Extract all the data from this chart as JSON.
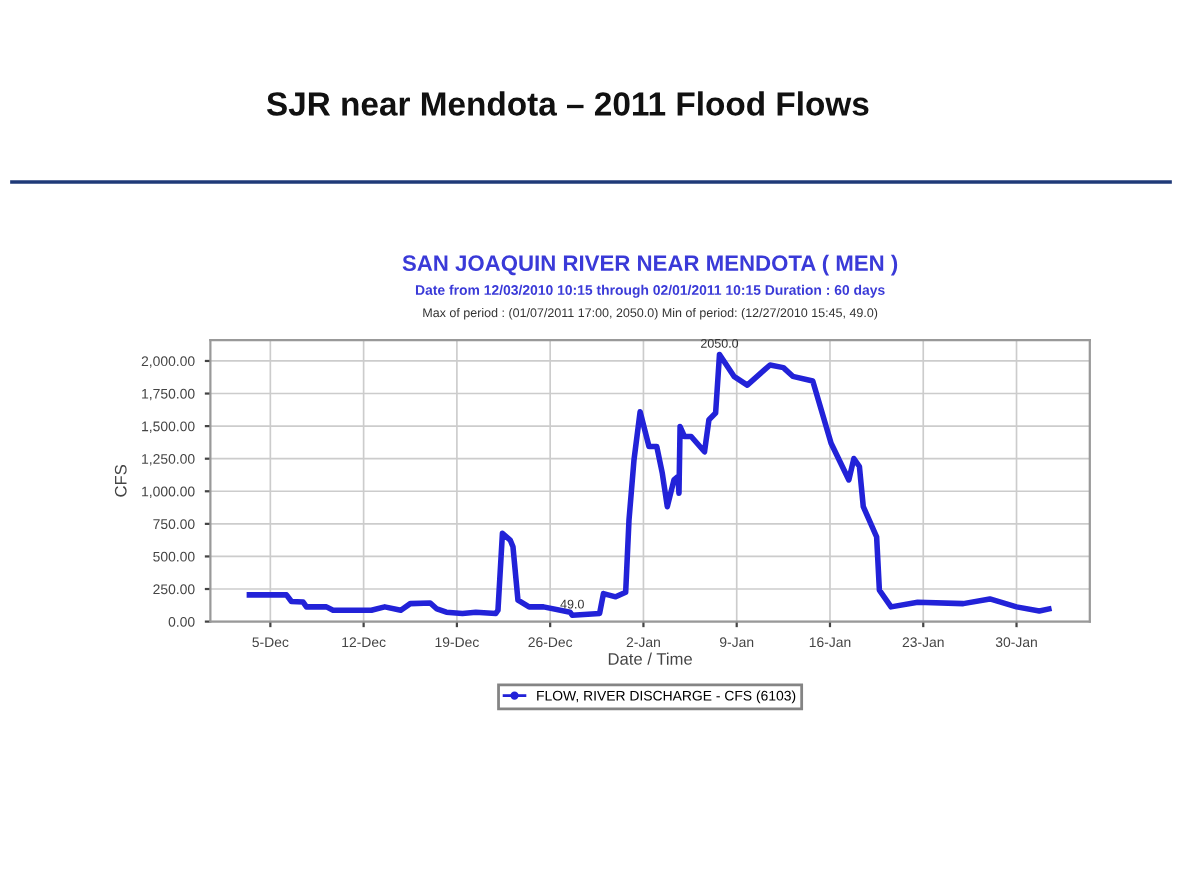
{
  "chart_data": {
    "type": "line",
    "title": "SAN JOAQUIN RIVER NEAR MENDOTA ( MEN )",
    "subtitle": "Date from 12/03/2010 10:15 through 02/01/2011 10:15 Duration : 60 days",
    "xlabel": "Date / Time",
    "ylabel": "CFS",
    "annotations": [
      "SJR near Mendota – 2011 Flood Flows",
      "Max of period : (01/07/2011 17:00, 2050.0) Min of period: (12/27/2010 15:45, 49.0)",
      {
        "text": "2050.0",
        "x": "2011-01-07T17:00",
        "y": 2050
      },
      {
        "text": "49.0",
        "x": "2010-12-27T15:45",
        "y": 49
      }
    ],
    "series": [
      {
        "name": "FLOW, RIVER DISCHARGE - CFS (6103)",
        "color": "#2222d8",
        "x": [
          "2010-12-03T10:15",
          "2010-12-06T05:00",
          "2010-12-06T14:00",
          "2010-12-07T11:00",
          "2010-12-07T17:00",
          "2010-12-09T05:00",
          "2010-12-09T17:00",
          "2010-12-12T14:00",
          "2010-12-13T14:00",
          "2010-12-14T19:00",
          "2010-12-15T12:00",
          "2010-12-17T00:00",
          "2010-12-17T12:00",
          "2010-12-18T05:00",
          "2010-12-19T10:00",
          "2010-12-20T10:00",
          "2010-12-21T22:00",
          "2010-12-22T02:00",
          "2010-12-22T10:00",
          "2010-12-23T00:00",
          "2010-12-23T05:00",
          "2010-12-23T14:00",
          "2010-12-24T10:00",
          "2010-12-25T12:00",
          "2010-12-27T12:00",
          "2010-12-27T15:45",
          "2010-12-29T17:00",
          "2010-12-30T00:00",
          "2010-12-30T22:00",
          "2010-12-31T16:00",
          "2010-12-31T22:00",
          "2011-01-01T07:00",
          "2011-01-01T18:00",
          "2011-01-02T10:00",
          "2011-01-03T00:00",
          "2011-01-03T10:00",
          "2011-01-03T19:00",
          "2011-01-04T07:00",
          "2011-01-04T14:00",
          "2011-01-04T16:00",
          "2011-01-04T18:00",
          "2011-01-05T02:00",
          "2011-01-05T14:00",
          "2011-01-06T14:00",
          "2011-01-06T22:00",
          "2011-01-07T10:00",
          "2011-01-07T17:00",
          "2011-01-08T19:00",
          "2011-01-09T19:00",
          "2011-01-11T12:00",
          "2011-01-12T12:00",
          "2011-01-13T05:00",
          "2011-01-14T17:00",
          "2011-01-16T02:00",
          "2011-01-17T10:00",
          "2011-01-17T19:00",
          "2011-01-18T05:00",
          "2011-01-18T12:00",
          "2011-01-19T12:00",
          "2011-01-19T17:00",
          "2011-01-20T14:00",
          "2011-01-22T14:00",
          "2011-01-26T00:00",
          "2011-01-28T00:00",
          "2011-01-30T00:00",
          "2011-01-31T17:00",
          "2011-02-01T10:15"
        ],
        "values": [
          205,
          205,
          154,
          150,
          113,
          113,
          87,
          87,
          113,
          87,
          138,
          143,
          97,
          72,
          62,
          72,
          62,
          87,
          677,
          626,
          574,
          164,
          113,
          113,
          72,
          49,
          62,
          215,
          190,
          225,
          780,
          1241,
          1610,
          1344,
          1344,
          1138,
          882,
          1087,
          1113,
          985,
          1497,
          1420,
          1420,
          1303,
          1549,
          1600,
          2050,
          1882,
          1815,
          1969,
          1949,
          1882,
          1846,
          1369,
          1087,
          1251,
          1190,
          882,
          651,
          241,
          113,
          149,
          138,
          174,
          113,
          82,
          97
        ]
      }
    ],
    "xlim": [
      "2010-11-30T12:00",
      "2011-02-04T12:00"
    ],
    "xticks": [
      {
        "value": "2010-12-05",
        "label": "5-Dec"
      },
      {
        "value": "2010-12-12",
        "label": "12-Dec"
      },
      {
        "value": "2010-12-19",
        "label": "19-Dec"
      },
      {
        "value": "2010-12-26",
        "label": "26-Dec"
      },
      {
        "value": "2011-01-02",
        "label": "2-Jan"
      },
      {
        "value": "2011-01-09",
        "label": "9-Jan"
      },
      {
        "value": "2011-01-16",
        "label": "16-Jan"
      },
      {
        "value": "2011-01-23",
        "label": "23-Jan"
      },
      {
        "value": "2011-01-30",
        "label": "30-Jan"
      }
    ],
    "ylim": [
      0,
      2160
    ],
    "yticks": [
      {
        "value": 0,
        "label": "0.00"
      },
      {
        "value": 250,
        "label": "250.00"
      },
      {
        "value": 500,
        "label": "500.00"
      },
      {
        "value": 750,
        "label": "750.00"
      },
      {
        "value": 1000,
        "label": "1,000.00"
      },
      {
        "value": 1250,
        "label": "1,250.00"
      },
      {
        "value": 1500,
        "label": "1,500.00"
      },
      {
        "value": 1750,
        "label": "1,750.00"
      },
      {
        "value": 2000,
        "label": "2,000.00"
      }
    ],
    "grid": true,
    "legend": "bottom",
    "marker": "none",
    "line_style": "solid"
  }
}
